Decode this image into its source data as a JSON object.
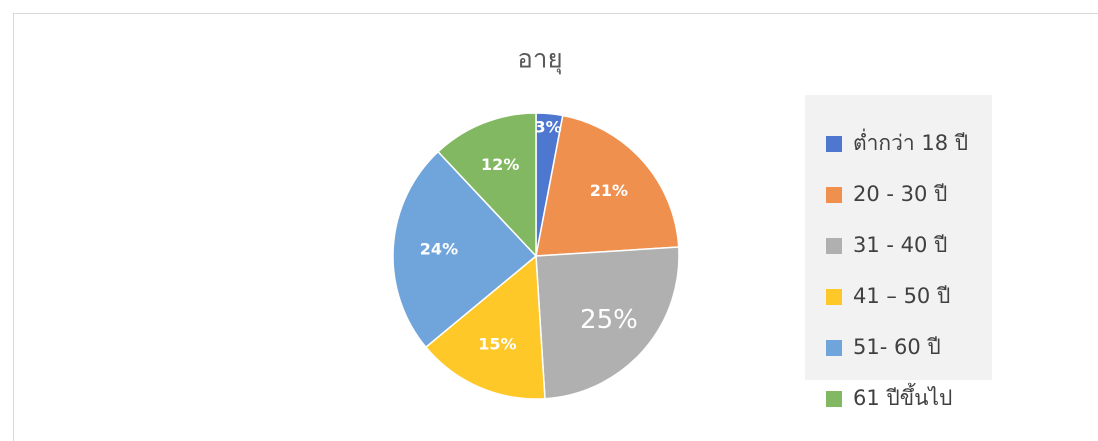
{
  "chart_data": {
    "type": "pie",
    "title": "อายุ",
    "categories": [
      "ต่ำกว่า 18 ปี",
      "20 - 30 ปี",
      "31 - 40 ปี",
      "41 – 50 ปี",
      "51- 60 ปี",
      "61 ปีขึ้นไป"
    ],
    "values": [
      3,
      21,
      25,
      15,
      24,
      12
    ],
    "value_labels": [
      "3%",
      "21%",
      "25%",
      "15%",
      "24%",
      "12%"
    ],
    "colors": [
      "#4e78cf",
      "#f0904f",
      "#b0b0b0",
      "#ffc829",
      "#70a5dc",
      "#82b862"
    ],
    "legend": "right"
  }
}
